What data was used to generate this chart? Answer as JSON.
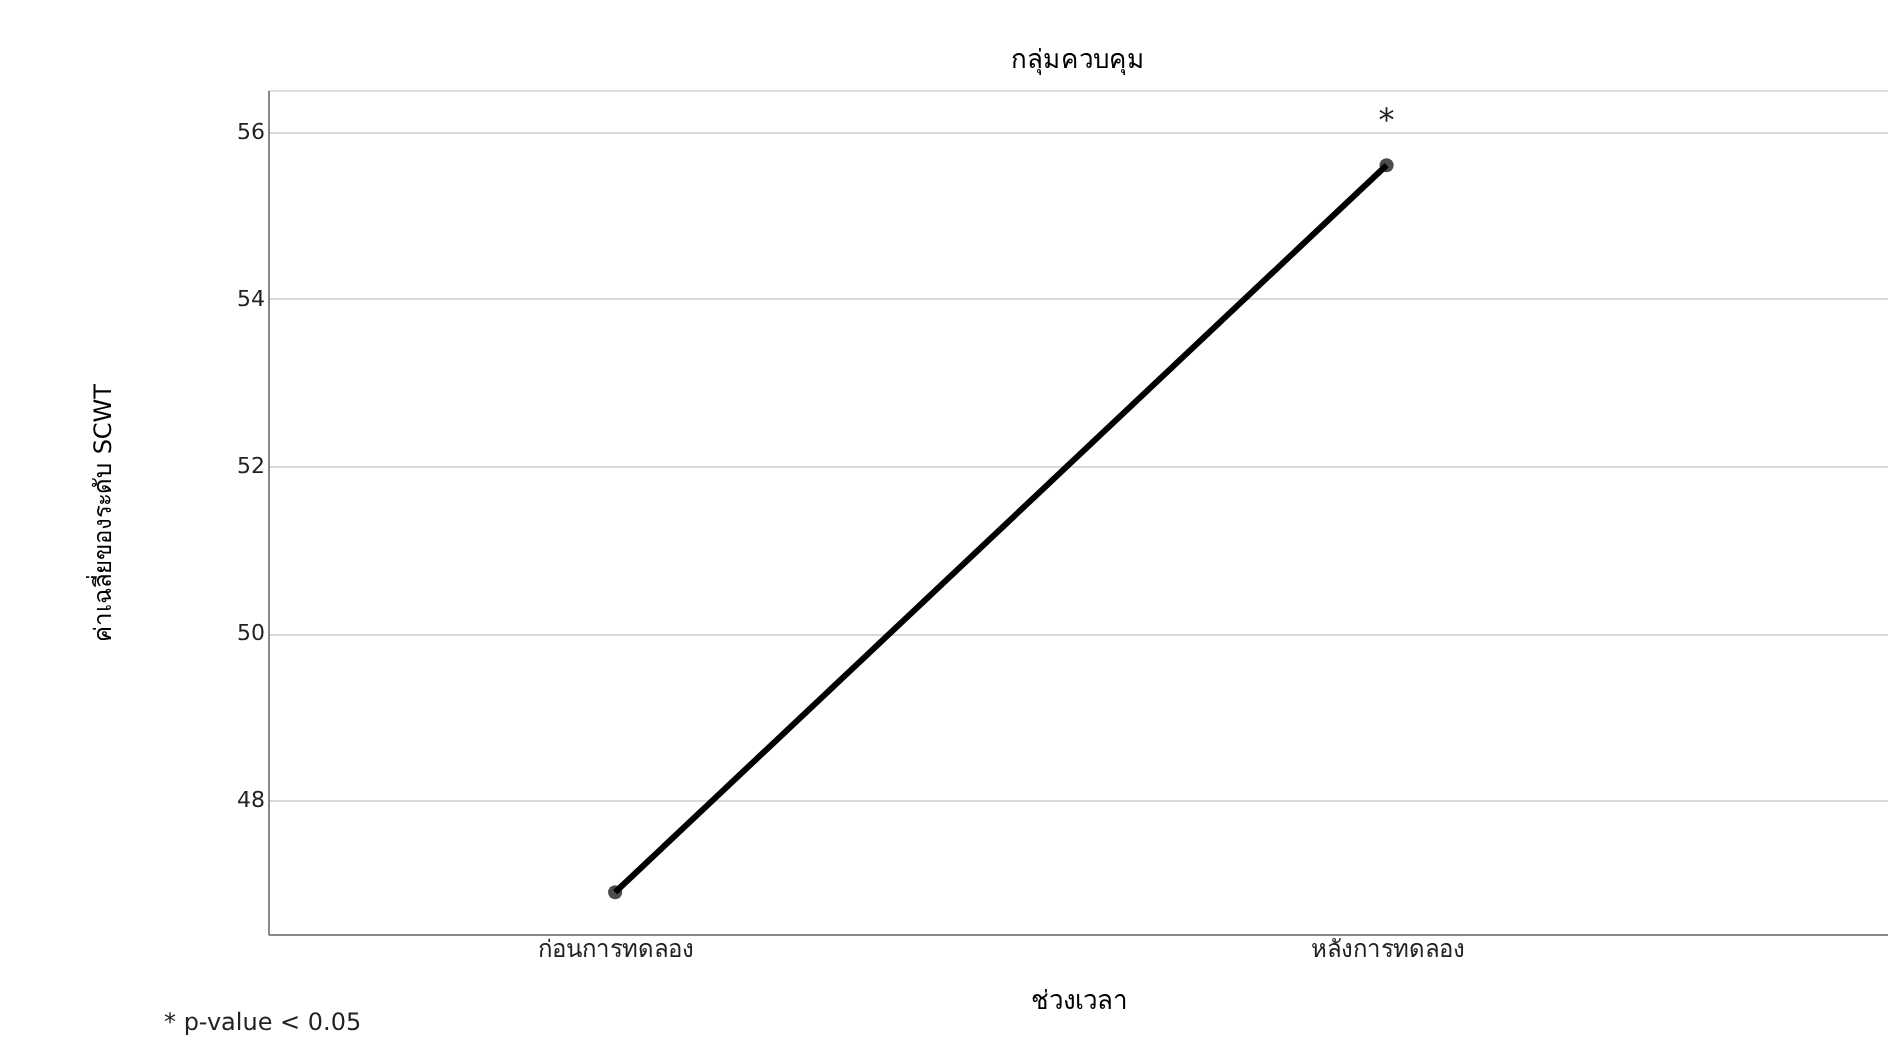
{
  "chart_data": {
    "type": "line",
    "title": "กลุ่มควบคุม",
    "xlabel": "ช่วงเวลา",
    "ylabel": "ค่าเฉลี่ยของระดับ SCWT",
    "categories": [
      "ก่อนการทดลอง",
      "หลังการทดลอง"
    ],
    "series": [
      {
        "color": "#000000",
        "values": [
          46.9,
          55.6
        ]
      }
    ],
    "ylim": [
      46.4,
      56.5
    ],
    "yticks": [
      48,
      50,
      52,
      54,
      56
    ],
    "grid": "y",
    "marker": "circle",
    "line_style": "solid",
    "legend": false,
    "annotations": [
      {
        "text": "*",
        "x": "หลังการทดลอง",
        "y": 55.6
      },
      "* p-value < 0.05"
    ]
  }
}
